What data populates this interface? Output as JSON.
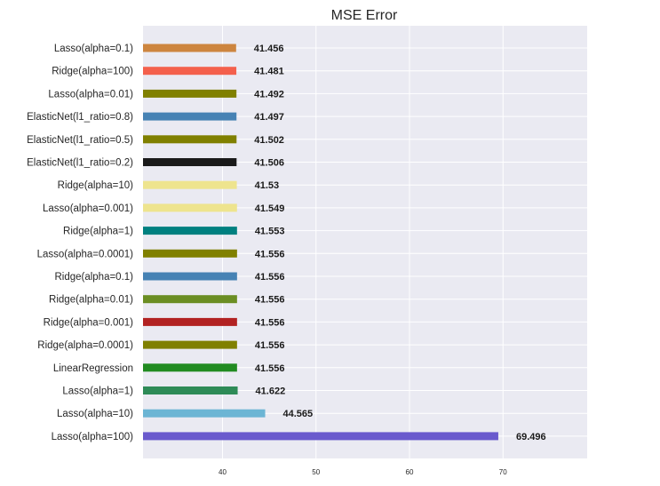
{
  "chart_data": {
    "type": "bar",
    "orientation": "horizontal",
    "title": "MSE Error",
    "xlabel": "",
    "ylabel": "",
    "xlim": [
      31.5,
      79
    ],
    "xticks": [
      40,
      50,
      60,
      70
    ],
    "grid": true,
    "background": "#eaeaf2",
    "categories": [
      "Lasso(alpha=0.1)",
      "Ridge(alpha=100)",
      "Lasso(alpha=0.01)",
      "ElasticNet(l1_ratio=0.8)",
      "ElasticNet(l1_ratio=0.5)",
      "ElasticNet(l1_ratio=0.2)",
      "Ridge(alpha=10)",
      "Lasso(alpha=0.001)",
      "Ridge(alpha=1)",
      "Lasso(alpha=0.0001)",
      "Ridge(alpha=0.1)",
      "Ridge(alpha=0.01)",
      "Ridge(alpha=0.001)",
      "Ridge(alpha=0.0001)",
      "LinearRegression",
      "Lasso(alpha=1)",
      "Lasso(alpha=10)",
      "Lasso(alpha=100)"
    ],
    "values": [
      41.456,
      41.481,
      41.492,
      41.497,
      41.502,
      41.506,
      41.53,
      41.549,
      41.553,
      41.556,
      41.556,
      41.556,
      41.556,
      41.556,
      41.556,
      41.622,
      44.565,
      69.496
    ],
    "labels": [
      "41.456",
      "41.481",
      "41.492",
      "41.497",
      "41.502",
      "41.506",
      "41.53",
      "41.549",
      "41.553",
      "41.556",
      "41.556",
      "41.556",
      "41.556",
      "41.556",
      "41.556",
      "41.622",
      "44.565",
      "69.496"
    ],
    "colors": [
      "#cd853f",
      "#f4604c",
      "#808000",
      "#4682b4",
      "#808000",
      "#1a1a1a",
      "#eee48e",
      "#eee48e",
      "#008080",
      "#808000",
      "#4682b4",
      "#6b8e23",
      "#b22222",
      "#808000",
      "#228b22",
      "#2e8b57",
      "#6cb5d4",
      "#6a5acd"
    ]
  }
}
